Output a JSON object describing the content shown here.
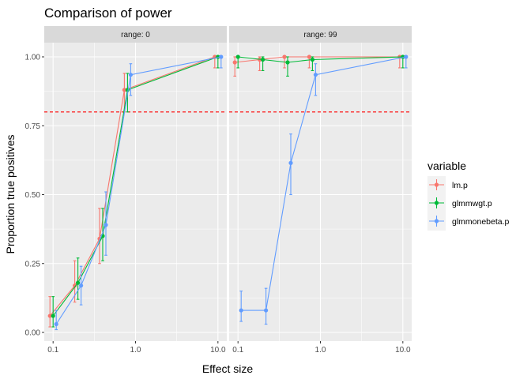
{
  "chart_data": {
    "type": "line",
    "title": "Comparison of power",
    "xlabel": "Effect size",
    "ylabel": "Proportion true positives",
    "x_scale": "log10",
    "x_ticks": [
      0.1,
      1.0,
      10.0
    ],
    "x_tick_labels": [
      "0.1",
      "1.0",
      "10.0"
    ],
    "ylim": [
      0,
      1
    ],
    "y_ticks": [
      0,
      0.25,
      0.5,
      0.75,
      1.0
    ],
    "y_tick_labels": [
      "0.00",
      "0.25",
      "0.50",
      "0.75",
      "1.00"
    ],
    "reference_line": {
      "y": 0.8,
      "color": "#ff0000",
      "style": "dashed"
    },
    "grid": true,
    "legend": {
      "title": "variable",
      "position": "right",
      "entries": [
        {
          "label": "lm.p",
          "color": "#F8766D"
        },
        {
          "label": "glmmwgt.p",
          "color": "#00BA38"
        },
        {
          "label": "glmmonebeta.p",
          "color": "#619CFF"
        }
      ]
    },
    "facets": [
      {
        "label": "range: 0",
        "series": [
          {
            "name": "lm.p",
            "color": "#F8766D",
            "x": [
              0.1,
              0.2,
              0.4,
              0.8,
              10.0
            ],
            "y": [
              0.06,
              0.17,
              0.34,
              0.88,
              1.0
            ],
            "lower": [
              0.02,
              0.11,
              0.25,
              0.8,
              0.96
            ],
            "upper": [
              0.13,
              0.26,
              0.45,
              0.94,
              1.0
            ]
          },
          {
            "name": "glmmwgt.p",
            "color": "#00BA38",
            "x": [
              0.1,
              0.2,
              0.4,
              0.8,
              10.0
            ],
            "y": [
              0.06,
              0.18,
              0.35,
              0.88,
              1.0
            ],
            "lower": [
              0.02,
              0.12,
              0.26,
              0.8,
              0.96
            ],
            "upper": [
              0.13,
              0.27,
              0.45,
              0.94,
              1.0
            ]
          },
          {
            "name": "glmmonebeta.p",
            "color": "#619CFF",
            "x": [
              0.1,
              0.2,
              0.4,
              0.8,
              10.0
            ],
            "y": [
              0.03,
              0.17,
              0.39,
              0.935,
              1.0
            ],
            "lower": [
              0.01,
              0.1,
              0.28,
              0.86,
              0.96
            ],
            "upper": [
              0.08,
              0.24,
              0.51,
              0.975,
              1.0
            ]
          }
        ]
      },
      {
        "label": "range: 99",
        "series": [
          {
            "name": "lm.p",
            "color": "#F8766D",
            "x": [
              0.1,
              0.2,
              0.4,
              0.8,
              10.0
            ],
            "y": [
              0.98,
              0.99,
              1.0,
              1.0,
              1.0
            ],
            "lower": [
              0.93,
              0.95,
              0.96,
              0.96,
              0.96
            ],
            "upper": [
              1.0,
              1.0,
              1.0,
              1.0,
              1.0
            ]
          },
          {
            "name": "glmmwgt.p",
            "color": "#00BA38",
            "x": [
              0.1,
              0.2,
              0.4,
              0.8,
              10.0
            ],
            "y": [
              1.0,
              0.99,
              0.98,
              0.99,
              1.0
            ],
            "lower": [
              0.96,
              0.95,
              0.93,
              0.95,
              0.96
            ],
            "upper": [
              1.0,
              1.0,
              1.0,
              1.0,
              1.0
            ]
          },
          {
            "name": "glmmonebeta.p",
            "color": "#619CFF",
            "x": [
              0.1,
              0.2,
              0.4,
              0.8,
              10.0
            ],
            "y": [
              0.08,
              0.08,
              0.615,
              0.935,
              1.0
            ],
            "lower": [
              0.04,
              0.03,
              0.5,
              0.86,
              0.96
            ],
            "upper": [
              0.15,
              0.16,
              0.72,
              0.975,
              1.0
            ]
          }
        ]
      }
    ]
  }
}
